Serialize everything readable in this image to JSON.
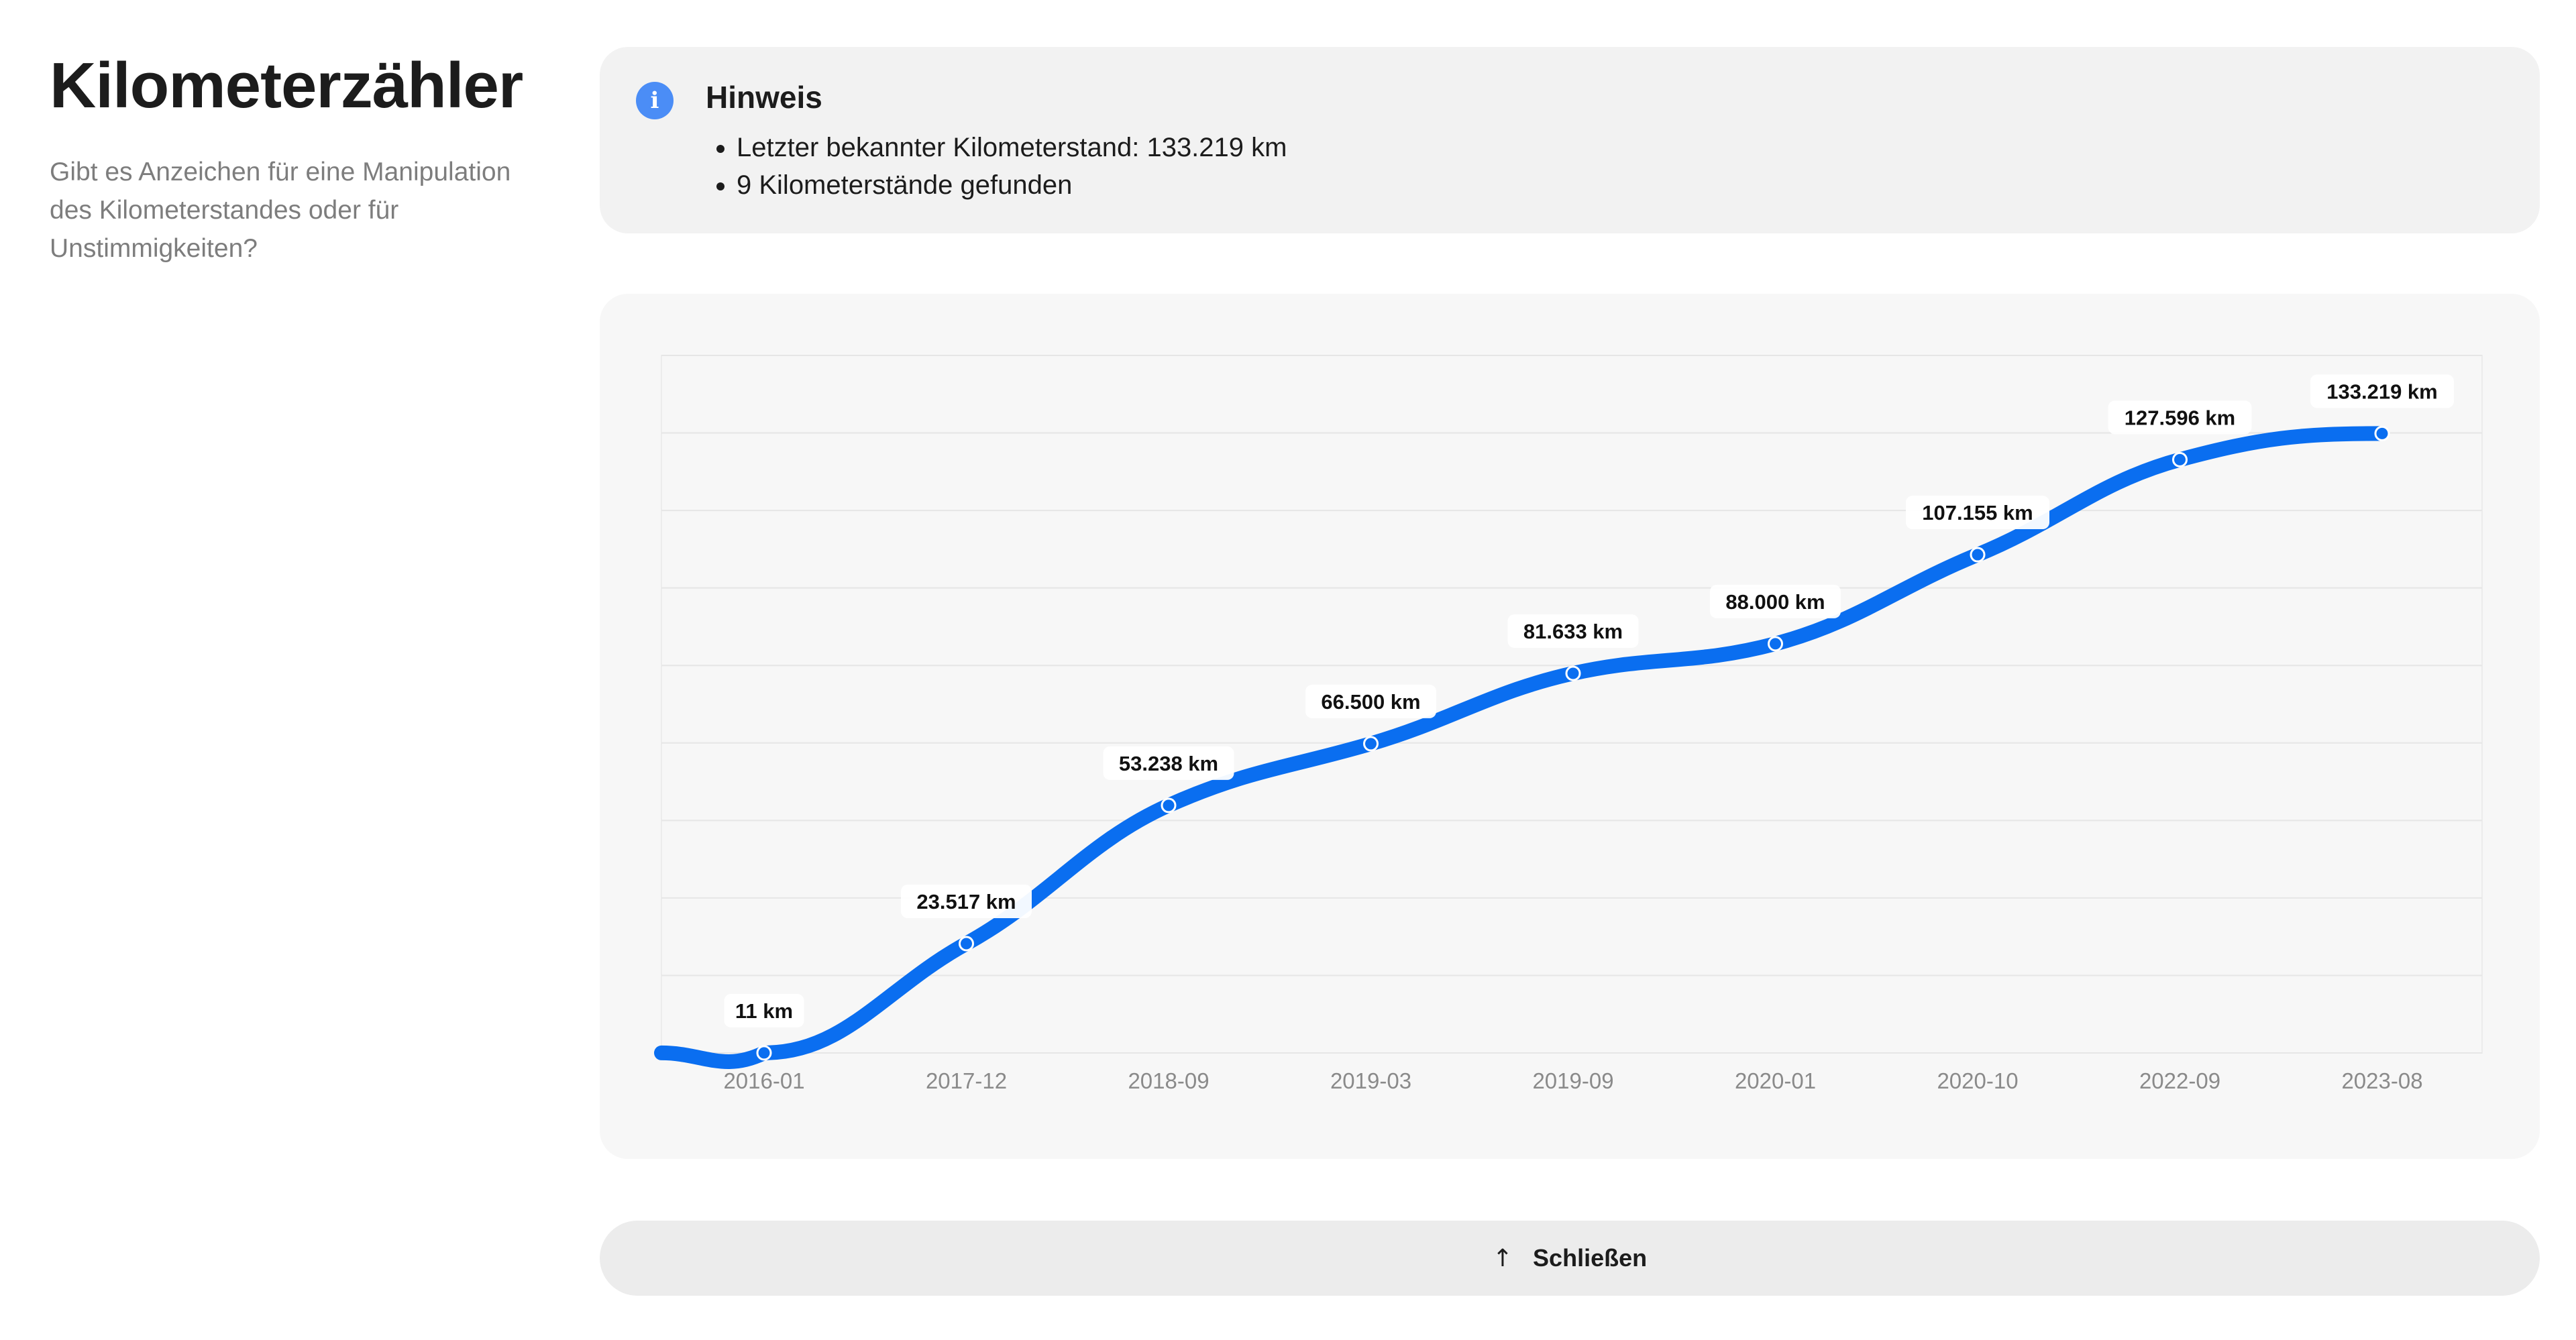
{
  "section": {
    "title": "Kilometerzähler",
    "subtitle": "Gibt es Anzeichen für eine Manipulation des Kilometerstandes oder für Unstimmigkeiten?"
  },
  "notice": {
    "icon": "info-icon",
    "title": "Hinweis",
    "items": [
      "Letzter bekannter Kilometerstand: 133.219 km",
      "9 Kilometerstände gefunden"
    ]
  },
  "chart_data": {
    "type": "line",
    "categories": [
      "2016-01",
      "2017-12",
      "2018-09",
      "2019-03",
      "2019-09",
      "2020-01",
      "2020-10",
      "2022-09",
      "2023-08"
    ],
    "series": [
      {
        "values": [
          11,
          23517,
          53238,
          66500,
          81633,
          88000,
          107155,
          127596,
          133219
        ],
        "labels": [
          "11 km",
          "23.517 km",
          "53.238 km",
          "66.500 km",
          "81.633 km",
          "88.000 km",
          "107.155 km",
          "127.596 km",
          "133.219 km"
        ],
        "color": "#0a6ef0"
      }
    ],
    "ylim": [
      0,
      150000
    ],
    "grid": true,
    "legend": "none"
  },
  "close_button": {
    "icon": "arrow-up-icon",
    "label": "Schließen"
  }
}
